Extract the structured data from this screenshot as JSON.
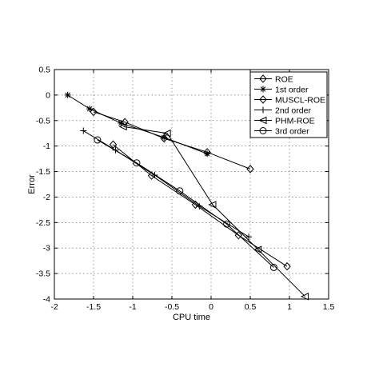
{
  "chart_data": {
    "type": "line",
    "title": "",
    "xlabel": "CPU time",
    "ylabel": "Error",
    "xlim": [
      -2,
      1.5
    ],
    "ylim": [
      -4,
      0.5
    ],
    "xticks": [
      "-2",
      "-1.5",
      "-1",
      "-0.5",
      "0",
      "0.5",
      "1",
      "1.5"
    ],
    "yticks": [
      "0.5",
      "0",
      "-0.5",
      "-1",
      "-1.5",
      "-2",
      "-2.5",
      "-3",
      "-3.5",
      "-4"
    ],
    "grid": true,
    "legend_position": "top-right",
    "series": [
      {
        "name": "ROE",
        "marker": "diamond",
        "x": [
          -1.5,
          -1.1,
          -0.6,
          -0.05,
          0.5
        ],
        "y": [
          -0.33,
          -0.53,
          -0.85,
          -1.12,
          -1.45
        ]
      },
      {
        "name": "1st order",
        "marker": "asterisk",
        "x": [
          -1.83,
          -1.55,
          -1.15,
          -0.6,
          -0.05
        ],
        "y": [
          0.0,
          -0.27,
          -0.55,
          -0.83,
          -1.15
        ]
      },
      {
        "name": "MUSCL-ROE",
        "marker": "diamond",
        "x": [
          -1.25,
          -0.76,
          -0.2,
          0.35,
          0.97
        ],
        "y": [
          -0.97,
          -1.58,
          -2.15,
          -2.75,
          -3.36
        ]
      },
      {
        "name": "2nd order",
        "marker": "plus",
        "x": [
          -1.63,
          -1.22,
          -0.72,
          -0.15,
          0.48
        ],
        "y": [
          -0.7,
          -1.08,
          -1.57,
          -2.18,
          -2.78
        ]
      },
      {
        "name": "PHM-ROE",
        "marker": "triangle-left",
        "x": [
          -1.12,
          -0.56,
          0.02,
          0.6,
          1.2
        ],
        "y": [
          -0.62,
          -0.75,
          -2.15,
          -3.03,
          -3.95
        ]
      },
      {
        "name": "3rd order",
        "marker": "circle",
        "x": [
          -1.45,
          -0.95,
          -0.4,
          0.2,
          0.8
        ],
        "y": [
          -0.88,
          -1.33,
          -1.88,
          -2.53,
          -3.38
        ]
      }
    ]
  }
}
